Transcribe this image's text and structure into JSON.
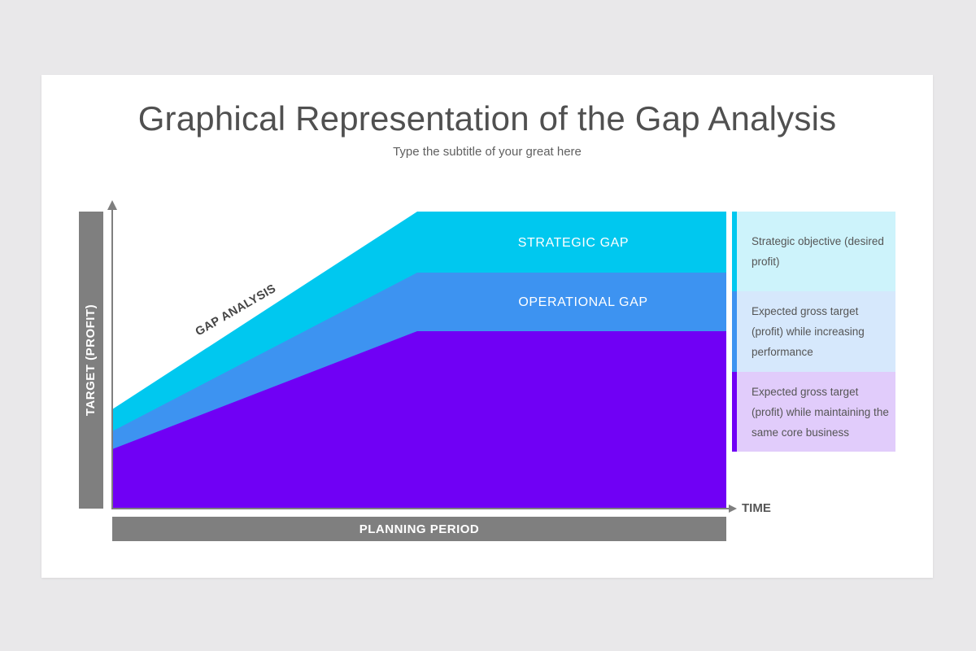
{
  "slide": {
    "title": "Graphical Representation of the Gap Analysis",
    "subtitle": "Type the subtitle of your great here"
  },
  "axes": {
    "y_label": "TARGET (PROFIT)",
    "x_label": "PLANNING PERIOD",
    "time_label": "TIME"
  },
  "diagram": {
    "diagonal_label": "GAP ANALYSIS",
    "bands": [
      {
        "name": "strategic",
        "label": "STRATEGIC GAP",
        "color": "#00c8ef"
      },
      {
        "name": "operational",
        "label": "OPERATIONAL GAP",
        "color": "#3d93f1"
      },
      {
        "name": "core",
        "label": "",
        "color": "#7000f5"
      }
    ]
  },
  "legend": [
    {
      "text": "Strategic objective (desired profit)",
      "bg": "#cdf3fb",
      "accent": "#00c8ef"
    },
    {
      "text": "Expected gross target (profit) while increasing performance",
      "bg": "#d6e8fc",
      "accent": "#3d93f1"
    },
    {
      "text": "Expected gross target (profit) while maintaining the same core business",
      "bg": "#e1ccfb",
      "accent": "#7000f5"
    }
  ],
  "colors": {
    "axis": "#7f7f7f",
    "background": "#e9e8ea",
    "panel": "#ffffff"
  }
}
